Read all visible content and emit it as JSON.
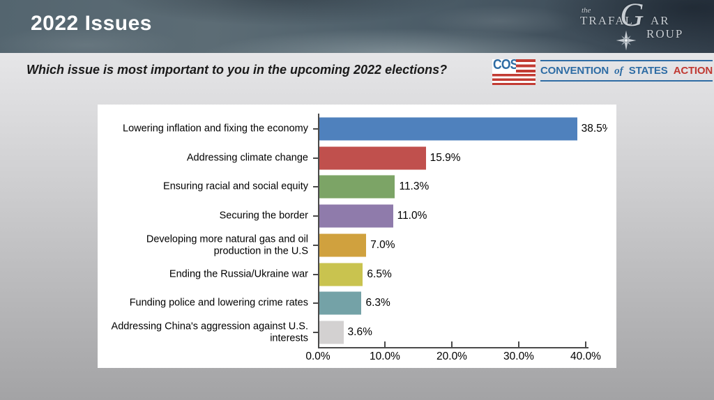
{
  "slide": {
    "title": "2022 Issues",
    "question": "Which issue is most important to you in the upcoming 2022 elections?"
  },
  "trafalgar_logo": {
    "prefix": "the",
    "part1": "TRAFAL",
    "big_letter": "G",
    "part2": "AR",
    "part3": "ROUP",
    "color": "#c7cdd3"
  },
  "cos_logo": {
    "acronym": "COS",
    "word1": "CONVENTION",
    "word2": "of",
    "word3": "STATES",
    "word4": "ACTION",
    "blue": "#2e6ca4",
    "red": "#c03a33"
  },
  "chart_data": {
    "type": "bar",
    "orientation": "horizontal",
    "title": "",
    "categories": [
      "Lowering inflation and fixing the economy",
      "Addressing climate change",
      "Ensuring racial and social equity",
      "Securing the border",
      "Developing more natural gas and oil production in the U.S",
      "Ending the Russia/Ukraine war",
      "Funding police and lowering crime rates",
      "Addressing China's aggression against U.S. interests"
    ],
    "category_lines": [
      [
        "Lowering inflation and fixing the economy"
      ],
      [
        "Addressing climate change"
      ],
      [
        "Ensuring racial and social equity"
      ],
      [
        "Securing the border"
      ],
      [
        "Developing more natural gas and oil",
        "production in the U.S"
      ],
      [
        "Ending the Russia/Ukraine war"
      ],
      [
        "Funding police and lowering crime rates"
      ],
      [
        "Addressing China's aggression against U.S.",
        "interests"
      ]
    ],
    "values": [
      38.5,
      15.9,
      11.3,
      11.0,
      7.0,
      6.5,
      6.3,
      3.6
    ],
    "value_labels": [
      "38.5%",
      "15.9%",
      "11.3%",
      "11.0%",
      "7.0%",
      "6.5%",
      "6.3%",
      "3.6%"
    ],
    "bar_colors": [
      "#4f81bd",
      "#c0504d",
      "#7ca466",
      "#8f7bab",
      "#d0a13e",
      "#c9c34f",
      "#74a2a7",
      "#d3d1d1"
    ],
    "xlim": [
      0,
      40
    ],
    "x_ticks": [
      "0.0%",
      "10.0%",
      "20.0%",
      "30.0%",
      "40.0%"
    ],
    "grid": false,
    "legend": false,
    "plot_background": "#ffffff"
  }
}
